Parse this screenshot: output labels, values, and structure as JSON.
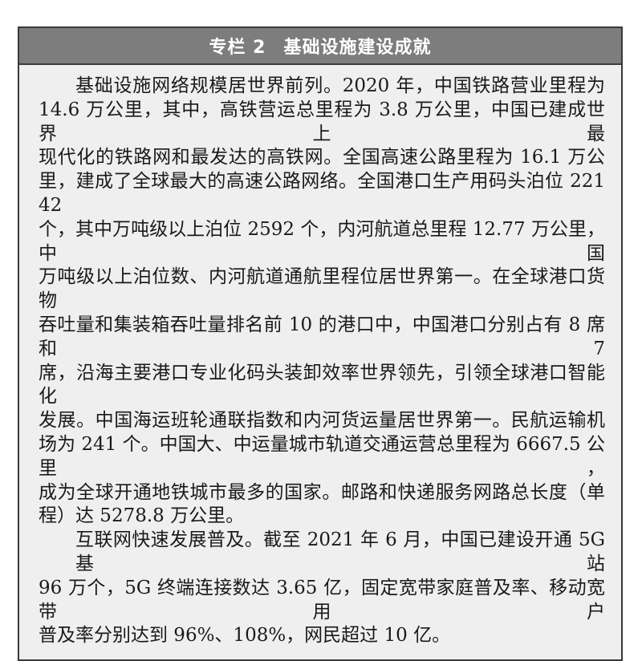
{
  "header": {
    "label": "专栏 2",
    "title": "基础设施建设成就"
  },
  "paragraphs": [
    {
      "lines": [
        "基础设施网络规模居世界前列。2020 年，中国铁路营业里程为",
        "14.6 万公里，其中，高铁营运总里程为 3.8 万公里，中国已建成世界上最",
        "现代化的铁路网和最发达的高铁网。全国高速公路里程为 16.1 万公",
        "里，建成了全球最大的高速公路网络。全国港口生产用码头泊位 22142",
        "个，其中万吨级以上泊位 2592 个，内河航道总里程 12.77 万公里，中国",
        "万吨级以上泊位数、内河航道通航里程位居世界第一。在全球港口货物",
        "吞吐量和集装箱吞吐量排名前 10 的港口中，中国港口分别占有 8 席和 7",
        "席，沿海主要港口专业化码头装卸效率世界领先，引领全球港口智能化",
        "发展。中国海运班轮通联指数和内河货运量居世界第一。民航运输机",
        "场为 241 个。中国大、中运量城市轨道交通运营总里程为 6667.5 公里，",
        "成为全球开通地铁城市最多的国家。邮路和快递服务网路总长度（单",
        "程）达 5278.8 万公里。"
      ]
    },
    {
      "lines": [
        "互联网快速发展普及。截至 2021 年 6 月，中国已建设开通 5G 基站",
        "96 万个，5G 终端连接数达 3.65 亿，固定宽带家庭普及率、移动宽带用户",
        "普及率分别达到 96%、108%，网民超过 10 亿。"
      ]
    }
  ]
}
